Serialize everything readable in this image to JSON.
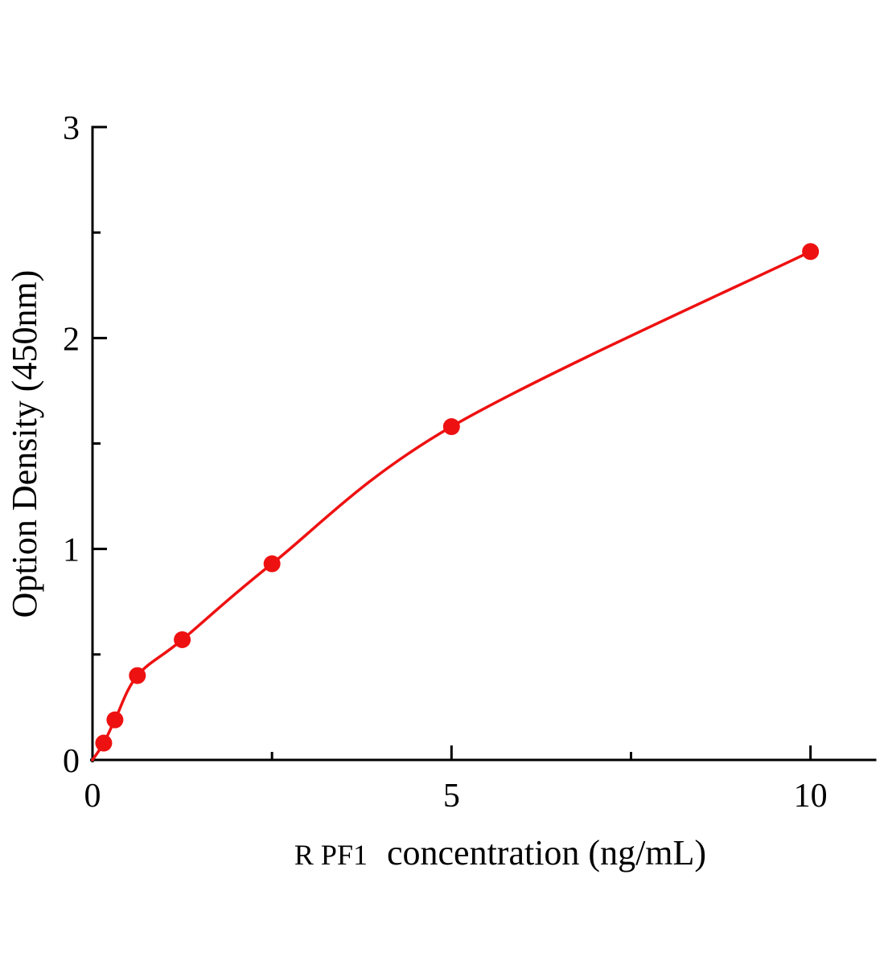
{
  "chart_data": {
    "type": "scatter",
    "title": "",
    "xlabel": "R PF1 concentration (ng/mL)",
    "xlabel_analyte": "R PF1",
    "xlabel_rest": "concentration (ng/mL)",
    "ylabel": "Option Density (450nm)",
    "x": [
      0.156,
      0.3125,
      0.625,
      1.25,
      2.5,
      5,
      10
    ],
    "y": [
      0.08,
      0.19,
      0.4,
      0.57,
      0.93,
      1.58,
      2.41
    ],
    "curve_style": "smooth fit through origin",
    "xlim": [
      0,
      10.9
    ],
    "ylim": [
      0,
      3
    ],
    "x_major_ticks": [
      0,
      5,
      10
    ],
    "x_major_tick_labels": [
      "0",
      "5",
      "10"
    ],
    "x_minor_ticks": [
      2.5,
      7.5
    ],
    "y_major_ticks": [
      0,
      1,
      2,
      3
    ],
    "y_major_tick_labels": [
      "0",
      "1",
      "2",
      "3"
    ],
    "y_minor_ticks": [
      0.5,
      1.5,
      2.5
    ],
    "point_color": "#ee1111",
    "line_color": "#ee1111",
    "axis_color": "#000000",
    "background_color": "#ffffff",
    "grid": false,
    "legend": null
  }
}
